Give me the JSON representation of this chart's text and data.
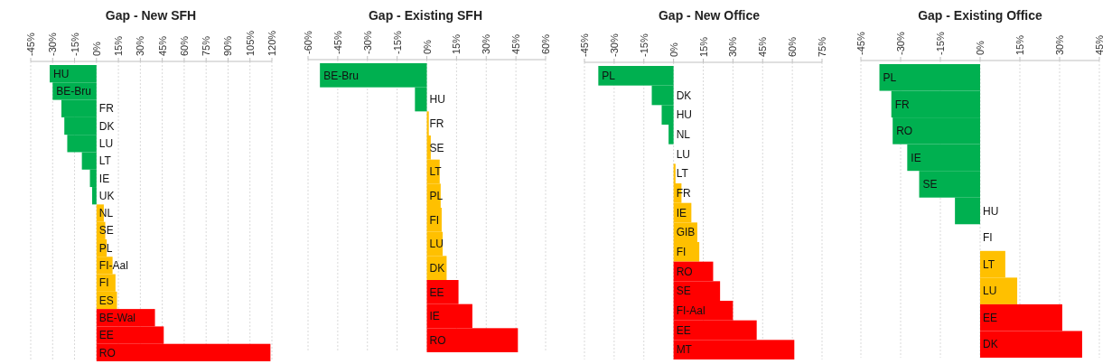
{
  "chart_data": [
    {
      "type": "bar",
      "orientation": "horizontal",
      "title": "Gap - New SFH",
      "grid": "x",
      "categories": [
        "HU",
        "BE-Bru",
        "FR",
        "DK",
        "LU",
        "LT",
        "IE",
        "UK",
        "NL",
        "SE",
        "PL",
        "FI-Aal",
        "FI",
        "ES",
        "BE-Wal",
        "EE",
        "RO"
      ],
      "values": [
        -32,
        -30,
        -24,
        -22,
        -20,
        -10,
        -4.5,
        -3,
        5,
        6,
        7,
        11,
        13,
        14,
        40,
        46,
        119
      ],
      "colors": [
        "#00b050",
        "#00b050",
        "#00b050",
        "#00b050",
        "#00b050",
        "#00b050",
        "#00b050",
        "#00b050",
        "#ffc000",
        "#ffc000",
        "#ffc000",
        "#ffc000",
        "#ffc000",
        "#ffc000",
        "#ff0000",
        "#ff0000",
        "#ff0000"
      ],
      "xlim": [
        -45,
        120
      ],
      "xticks": [
        {
          "value": -45,
          "label": "-45%"
        },
        {
          "value": -30,
          "label": "-30%"
        },
        {
          "value": -15,
          "label": "-15%"
        },
        {
          "value": 0,
          "label": "0%"
        },
        {
          "value": 15,
          "label": "15%"
        },
        {
          "value": 30,
          "label": "30%"
        },
        {
          "value": 45,
          "label": "45%"
        },
        {
          "value": 60,
          "label": "60%"
        },
        {
          "value": 75,
          "label": "75%"
        },
        {
          "value": 90,
          "label": "90%"
        },
        {
          "value": 105,
          "label": "105%"
        },
        {
          "value": 120,
          "label": "120%"
        }
      ]
    },
    {
      "type": "bar",
      "orientation": "horizontal",
      "title": "Gap - Existing SFH",
      "grid": "x",
      "categories": [
        "BE-Bru",
        "HU",
        "FR",
        "SE",
        "LT",
        "PL",
        "FI",
        "LU",
        "DK",
        "EE",
        "IE",
        "RO"
      ],
      "values": [
        -54,
        -6,
        1,
        2,
        6.5,
        7,
        7.5,
        8,
        10,
        16,
        23,
        46
      ],
      "colors": [
        "#00b050",
        "#00b050",
        "#ffc000",
        "#ffc000",
        "#ffc000",
        "#ffc000",
        "#ffc000",
        "#ffc000",
        "#ffc000",
        "#ff0000",
        "#ff0000",
        "#ff0000"
      ],
      "xlim": [
        -60,
        60
      ],
      "xticks": [
        {
          "value": -60,
          "label": "-60%"
        },
        {
          "value": -45,
          "label": "-45%"
        },
        {
          "value": -30,
          "label": "-30%"
        },
        {
          "value": -15,
          "label": "-15%"
        },
        {
          "value": 0,
          "label": "0%"
        },
        {
          "value": 15,
          "label": "15%"
        },
        {
          "value": 30,
          "label": "30%"
        },
        {
          "value": 45,
          "label": "45%"
        },
        {
          "value": 60,
          "label": "60%"
        }
      ]
    },
    {
      "type": "bar",
      "orientation": "horizontal",
      "title": "Gap - New Office",
      "grid": "x",
      "categories": [
        "PL",
        "DK",
        "HU",
        "NL",
        "LU",
        "LT",
        "FR",
        "IE",
        "GIB",
        "FI",
        "RO",
        "SE",
        "FI-Aal",
        "EE",
        "MT"
      ],
      "values": [
        -38,
        -11,
        -6,
        -2.5,
        0,
        1,
        4,
        9,
        12,
        13,
        20,
        23.5,
        30,
        42,
        61
      ],
      "colors": [
        "#00b050",
        "#00b050",
        "#00b050",
        "#00b050",
        "#ffc000",
        "#ffc000",
        "#ffc000",
        "#ffc000",
        "#ffc000",
        "#ffc000",
        "#ff0000",
        "#ff0000",
        "#ff0000",
        "#ff0000",
        "#ff0000"
      ],
      "xlim": [
        -45,
        75
      ],
      "xticks": [
        {
          "value": -45,
          "label": "-45%"
        },
        {
          "value": -30,
          "label": "-30%"
        },
        {
          "value": -15,
          "label": "-15%"
        },
        {
          "value": 0,
          "label": "0%"
        },
        {
          "value": 15,
          "label": "15%"
        },
        {
          "value": 30,
          "label": "30%"
        },
        {
          "value": 45,
          "label": "45%"
        },
        {
          "value": 60,
          "label": "60%"
        },
        {
          "value": 75,
          "label": "75%"
        }
      ]
    },
    {
      "type": "bar",
      "orientation": "horizontal",
      "title": "Gap - Existing Office",
      "grid": "x",
      "categories": [
        "PL",
        "FR",
        "RO",
        "IE",
        "SE",
        "HU",
        "FI",
        "LT",
        "LU",
        "EE",
        "DK"
      ],
      "values": [
        -38,
        -33.5,
        -33,
        -27.5,
        -23,
        -9.5,
        0,
        9.5,
        14,
        31,
        38.5
      ],
      "colors": [
        "#00b050",
        "#00b050",
        "#00b050",
        "#00b050",
        "#00b050",
        "#00b050",
        "#ffc000",
        "#ffc000",
        "#ffc000",
        "#ff0000",
        "#ff0000"
      ],
      "xlim": [
        -45,
        45
      ],
      "xticks": [
        {
          "value": -45,
          "label": "-45%"
        },
        {
          "value": -30,
          "label": "-30%"
        },
        {
          "value": -15,
          "label": "-15%"
        },
        {
          "value": 0,
          "label": "0%"
        },
        {
          "value": 15,
          "label": "15%"
        },
        {
          "value": 30,
          "label": "30%"
        },
        {
          "value": 45,
          "label": "45%"
        }
      ]
    }
  ]
}
